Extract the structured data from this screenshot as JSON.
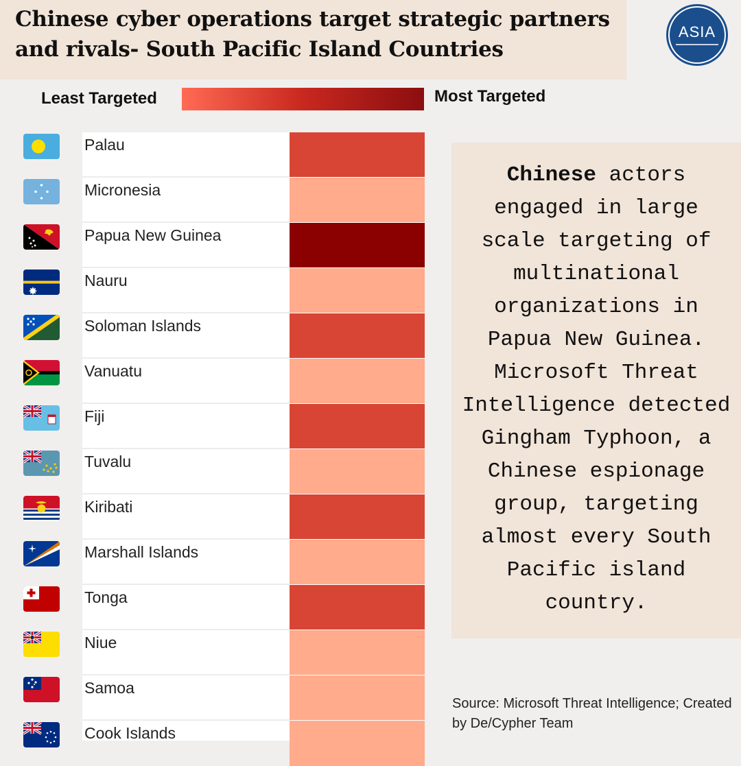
{
  "title": "Chinese cyber operations target strategic partners and rivals- South Pacific Island Countries",
  "logo": {
    "text": "ASIA"
  },
  "legend": {
    "least": "Least Targeted",
    "most": "Most Targeted"
  },
  "note": {
    "bold": "Chinese",
    "rest": " actors engaged in large scale targeting of multinational organizations in Papua New Guinea. Microsoft Threat Intelligence detected Gingham Typhoon, a Chinese espionage group, targeting almost every South Pacific island country."
  },
  "source": "Source: Microsoft Threat Intelligence; Created by De/Cypher Team",
  "colors": {
    "low": "#ffab8c",
    "medium": "#d84535",
    "high": "#8b0000"
  },
  "chart_data": {
    "type": "heatmap",
    "title": "Chinese cyber operations target strategic partners and rivals- South Pacific Island Countries",
    "legend": [
      "Least Targeted",
      "Most Targeted"
    ],
    "scale": "1 = least targeted, 3 = most targeted",
    "categories": [
      "Palau",
      "Micronesia",
      "Papua New Guinea",
      "Nauru",
      "Soloman Islands",
      "Vanuatu",
      "Fiji",
      "Tuvalu",
      "Kiribati",
      "Marshall Islands",
      "Tonga",
      "Niue",
      "Samoa",
      "Cook Islands"
    ],
    "values": [
      2,
      1,
      3,
      1,
      2,
      1,
      2,
      1,
      2,
      1,
      2,
      1,
      1,
      1
    ],
    "flags": [
      "palau-flag-icon",
      "micronesia-flag-icon",
      "papua-new-guinea-flag-icon",
      "nauru-flag-icon",
      "solomon-islands-flag-icon",
      "vanuatu-flag-icon",
      "fiji-flag-icon",
      "tuvalu-flag-icon",
      "kiribati-flag-icon",
      "marshall-islands-flag-icon",
      "tonga-flag-icon",
      "niue-flag-icon",
      "samoa-flag-icon",
      "cook-islands-flag-icon"
    ]
  }
}
